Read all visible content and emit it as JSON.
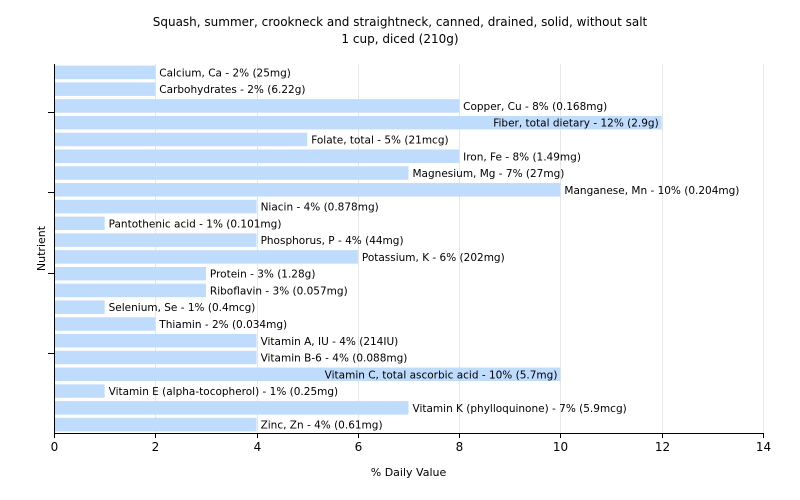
{
  "chart_data": {
    "type": "bar",
    "orientation": "horizontal",
    "title": "Squash, summer, crookneck and straightneck, canned, drained, solid, without salt",
    "subtitle": "1 cup, diced (210g)",
    "xlabel": "% Daily Value",
    "ylabel": "Nutrient",
    "xlim": [
      0,
      14
    ],
    "xticks": [
      "0",
      "2",
      "4",
      "6",
      "8",
      "10",
      "12",
      "14"
    ],
    "grid": true,
    "bar_color": "#bfdcfc",
    "categories": [
      "Calcium, Ca",
      "Carbohydrates",
      "Copper, Cu",
      "Fiber, total dietary",
      "Folate, total",
      "Iron, Fe",
      "Magnesium, Mg",
      "Manganese, Mn",
      "Niacin",
      "Pantothenic acid",
      "Phosphorus, P",
      "Potassium, K",
      "Protein",
      "Riboflavin",
      "Selenium, Se",
      "Thiamin",
      "Vitamin A, IU",
      "Vitamin B-6",
      "Vitamin C, total ascorbic acid",
      "Vitamin E (alpha-tocopherol)",
      "Vitamin K (phylloquinone)",
      "Zinc, Zn"
    ],
    "values": [
      2,
      2,
      8,
      12,
      5,
      8,
      7,
      10,
      4,
      1,
      4,
      6,
      3,
      3,
      1,
      2,
      4,
      4,
      10,
      1,
      7,
      4
    ],
    "data_labels": [
      "Calcium, Ca - 2% (25mg)",
      "Carbohydrates - 2% (6.22g)",
      "Copper, Cu - 8% (0.168mg)",
      "Fiber, total dietary - 12% (2.9g)",
      "Folate, total - 5% (21mcg)",
      "Iron, Fe - 8% (1.49mg)",
      "Magnesium, Mg - 7% (27mg)",
      "Manganese, Mn - 10% (0.204mg)",
      "Niacin - 4% (0.878mg)",
      "Pantothenic acid - 1% (0.101mg)",
      "Phosphorus, P - 4% (44mg)",
      "Potassium, K - 6% (202mg)",
      "Protein - 3% (1.28g)",
      "Riboflavin - 3% (0.057mg)",
      "Selenium, Se - 1% (0.4mcg)",
      "Thiamin - 2% (0.034mg)",
      "Vitamin A, IU - 4% (214IU)",
      "Vitamin B-6 - 4% (0.088mg)",
      "Vitamin C, total ascorbic acid - 10% (5.7mg)",
      "Vitamin E (alpha-tocopherol) - 1% (0.25mg)",
      "Vitamin K (phylloquinone) - 7% (5.9mcg)",
      "Zinc, Zn - 4% (0.61mg)"
    ]
  }
}
